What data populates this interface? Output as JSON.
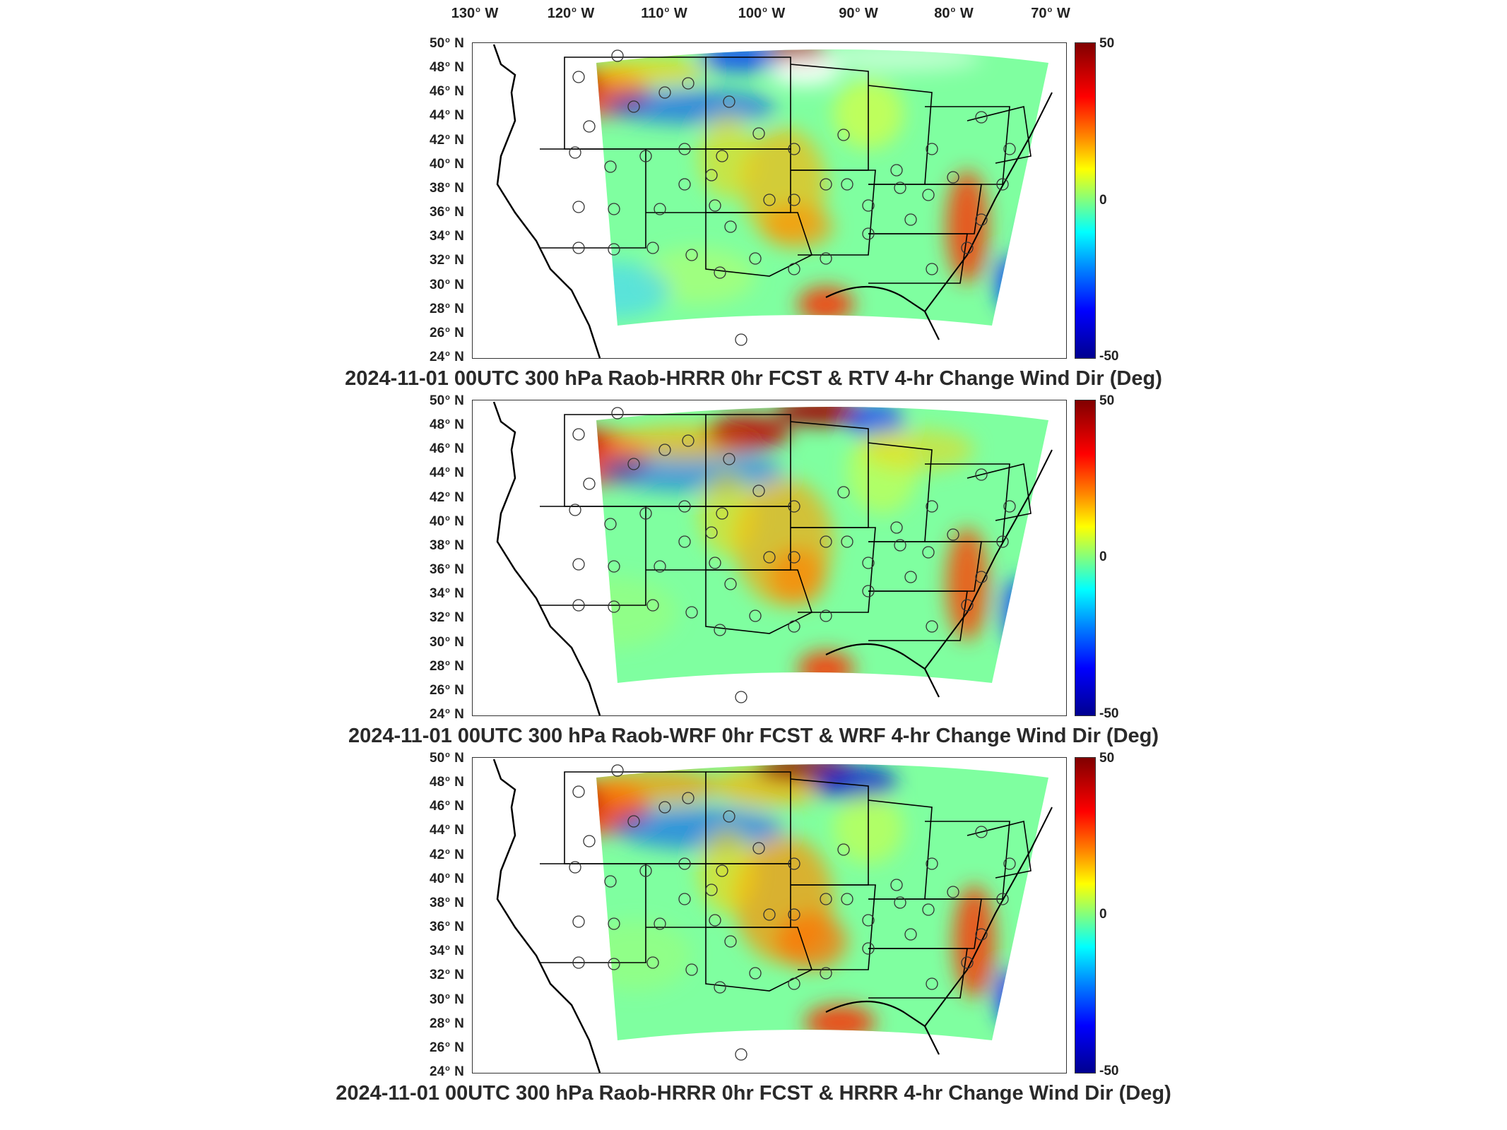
{
  "longitude_labels": [
    "130",
    "120",
    "110",
    "100",
    "90",
    "80",
    "70"
  ],
  "longitude_suffix": "W",
  "latitude_labels": [
    "50",
    "48",
    "46",
    "44",
    "42",
    "40",
    "38",
    "36",
    "34",
    "32",
    "30",
    "28",
    "26",
    "24"
  ],
  "latitude_suffix": "N",
  "colorbar": {
    "max": "50",
    "mid": "0",
    "min": "-50"
  },
  "panels": [
    {
      "title": "2024-11-01 00UTC 300 hPa Raob-HRRR 0hr FCST & RTV 4-hr Change Wind Dir (Deg)"
    },
    {
      "title": "2024-11-01 00UTC 300 hPa Raob-WRF 0hr FCST & WRF 4-hr Change Wind Dir (Deg)"
    },
    {
      "title": "2024-11-01 00UTC 300 hPa Raob-HRRR 0hr FCST & HRRR 4-hr Change Wind Dir (Deg)"
    }
  ],
  "colors": {
    "dark_red": "#800000",
    "red": "#ff0000",
    "yellow": "#ffff00",
    "green": "#80ff80",
    "cyan": "#00ffff",
    "blue": "#0000ff",
    "dark_blue": "#00008f"
  }
}
